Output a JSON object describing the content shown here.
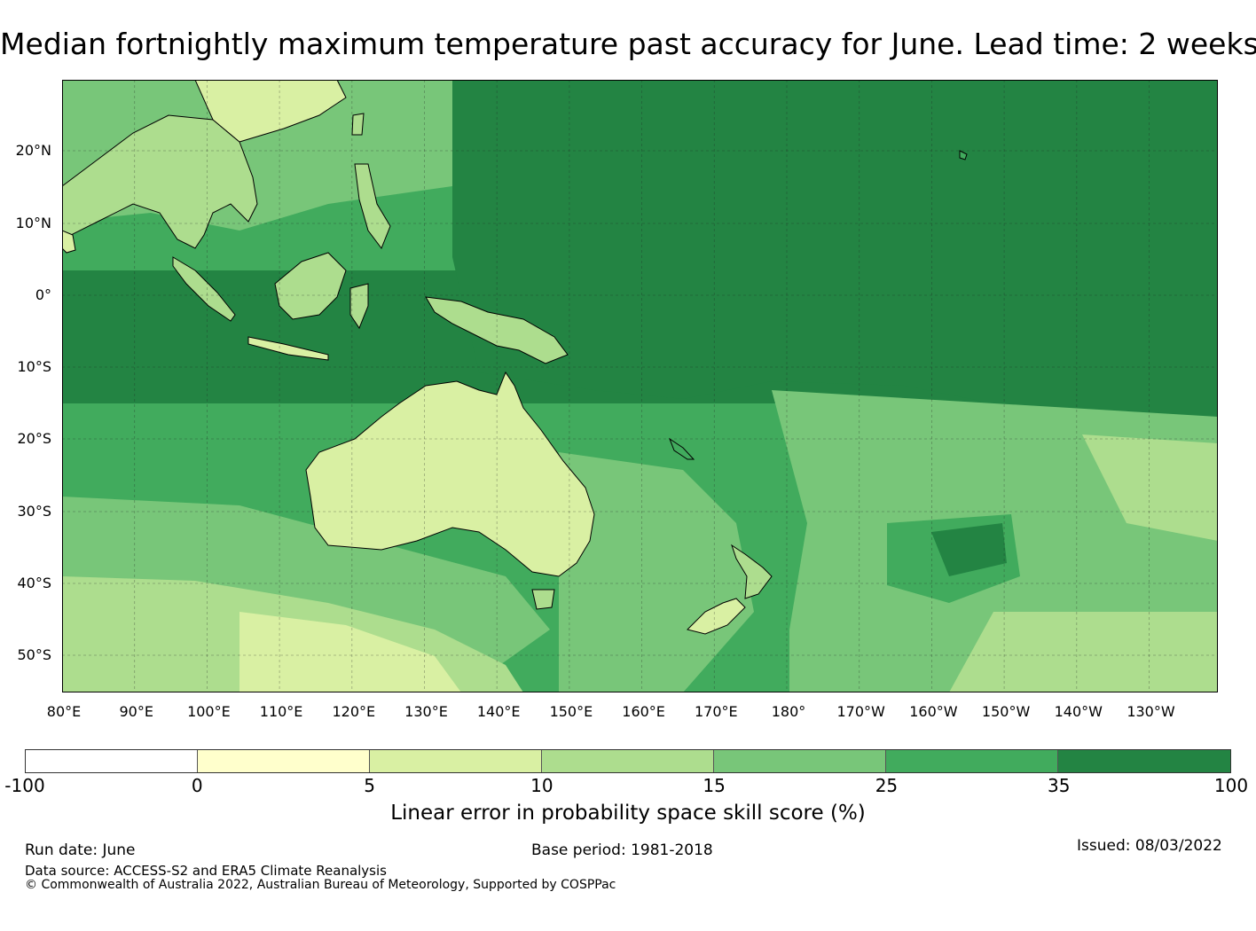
{
  "title": "Median fortnightly maximum temperature past accuracy for June. Lead time: 2 weeks",
  "map": {
    "lon_labels": [
      "80°E",
      "90°E",
      "100°E",
      "110°E",
      "120°E",
      "130°E",
      "140°E",
      "150°E",
      "160°E",
      "170°E",
      "180°",
      "170°W",
      "160°W",
      "150°W",
      "140°W",
      "130°W"
    ],
    "lat_labels": [
      "20°N",
      "10°N",
      "0°",
      "10°S",
      "20°S",
      "30°S",
      "40°S",
      "50°S"
    ],
    "ocean_base_color": "#2e9350",
    "land_color": "#c8e89e"
  },
  "colorbar": {
    "bins": [
      {
        "from": -100,
        "to": 0,
        "color": "#ffffff"
      },
      {
        "from": 0,
        "to": 5,
        "color": "#ffffcc"
      },
      {
        "from": 5,
        "to": 10,
        "color": "#d9f0a3"
      },
      {
        "from": 10,
        "to": 15,
        "color": "#addd8e"
      },
      {
        "from": 15,
        "to": 25,
        "color": "#78c679"
      },
      {
        "from": 25,
        "to": 35,
        "color": "#41ab5d"
      },
      {
        "from": 35,
        "to": 100,
        "color": "#238443"
      }
    ],
    "tick_labels": [
      "-100",
      "0",
      "5",
      "10",
      "15",
      "25",
      "35",
      "100"
    ],
    "label": "Linear error in probability space skill score (%)"
  },
  "footer": {
    "run_date": "Run date: June",
    "base_period": "Base period: 1981-2018",
    "issued": "Issued: 08/03/2022",
    "data_source": "Data source: ACCESS-S2 and ERA5 Climate Reanalysis",
    "copyright": "© Commonwealth of Australia 2022, Australian Bureau of Meteorology, Supported by COSPPac"
  }
}
